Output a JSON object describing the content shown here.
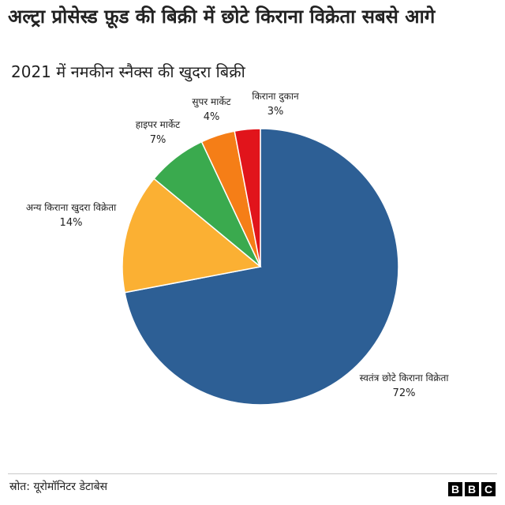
{
  "title": "अल्ट्रा प्रोसेस्ड फ़ूड की बिक्री में छोटे किराना विक्रेता सबसे आगे",
  "chart_data": {
    "type": "pie",
    "title": "2021 में नमकीन स्नैक्स की खुदरा बिक्री",
    "slices": [
      {
        "label": "स्वतंत्र छोटे किराना विक्रेता",
        "value": 72,
        "value_label": "72%",
        "color": "#2d5f95"
      },
      {
        "label": "अन्य किराना खुदरा विक्रेता",
        "value": 14,
        "value_label": "14%",
        "color": "#fbb033"
      },
      {
        "label": "हाइपर मार्केट",
        "value": 7,
        "value_label": "7%",
        "color": "#3aaa4e"
      },
      {
        "label": "सुपर मार्केट",
        "value": 4,
        "value_label": "4%",
        "color": "#f57e17"
      },
      {
        "label": "किराना दुकान",
        "value": 3,
        "value_label": "3%",
        "color": "#e1141b"
      }
    ]
  },
  "footer": {
    "source": "स्रोत: यूरोमॉनिटर डेटाबेस",
    "logo_letters": [
      "B",
      "B",
      "C"
    ]
  }
}
